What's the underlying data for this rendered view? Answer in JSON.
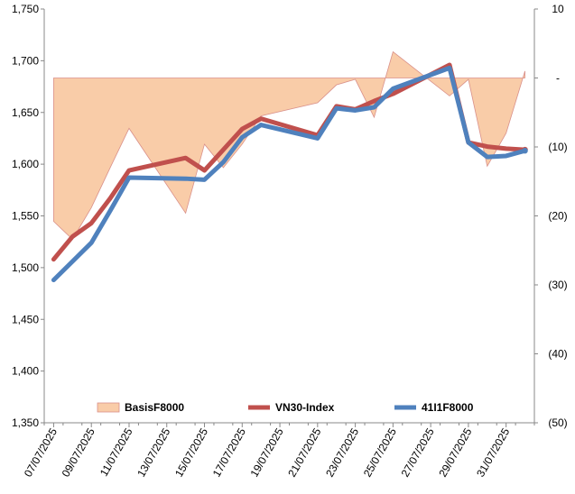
{
  "chart_data": {
    "type": "line",
    "title": "",
    "xlabel": "",
    "ylabel": "",
    "x_tick_labels": [
      "07/07/2025",
      "09/07/2025",
      "11/07/2025",
      "13/07/2025",
      "15/07/2025",
      "17/07/2025",
      "19/07/2025",
      "21/07/2025",
      "23/07/2025",
      "25/07/2025",
      "27/07/2025",
      "29/07/2025",
      "31/07/2025"
    ],
    "x_range": [
      "2025-07-07",
      "2025-08-01"
    ],
    "left_axis": {
      "ylim": [
        1350,
        1750
      ],
      "tick_labels": [
        "1,350",
        "1,400",
        "1,450",
        "1,500",
        "1,550",
        "1,600",
        "1,650",
        "1,700",
        "1,750"
      ]
    },
    "right_axis": {
      "ylim": [
        -50,
        10
      ],
      "tick_labels": [
        "(50)",
        "(40)",
        "(30)",
        "(20)",
        "(10)",
        "-",
        "10"
      ]
    },
    "grid": false,
    "legend_position": "bottom",
    "series": [
      {
        "name": "BasisF8000",
        "type": "area",
        "axis": "right",
        "color": "#f9cca8",
        "edge_color": "#d9908a",
        "x": [
          "2025-07-07",
          "2025-07-08",
          "2025-07-09",
          "2025-07-10",
          "2025-07-11",
          "2025-07-14",
          "2025-07-15",
          "2025-07-16",
          "2025-07-17",
          "2025-07-18",
          "2025-07-21",
          "2025-07-22",
          "2025-07-23",
          "2025-07-24",
          "2025-07-25",
          "2025-07-28",
          "2025-07-29",
          "2025-07-30",
          "2025-07-31",
          "2025-08-01"
        ],
        "values": [
          -20.8,
          -23.4,
          -18.8,
          -13.0,
          -7.3,
          -19.6,
          -9.6,
          -13.0,
          -9.6,
          -5.5,
          -3.6,
          -1.0,
          -0.2,
          -5.7,
          3.8,
          -2.6,
          -0.2,
          -12.8,
          -8.0,
          1.0
        ]
      },
      {
        "name": "VN30-Index",
        "type": "line",
        "axis": "left",
        "color": "#c0504d",
        "x": [
          "2025-07-07",
          "2025-07-08",
          "2025-07-09",
          "2025-07-10",
          "2025-07-11",
          "2025-07-14",
          "2025-07-15",
          "2025-07-16",
          "2025-07-17",
          "2025-07-18",
          "2025-07-21",
          "2025-07-22",
          "2025-07-23",
          "2025-07-24",
          "2025-07-25",
          "2025-07-28",
          "2025-07-29",
          "2025-07-30",
          "2025-07-31",
          "2025-08-01"
        ],
        "values": [
          1508,
          1530,
          1543,
          1567,
          1594,
          1606,
          1594,
          1614,
          1634,
          1644,
          1628,
          1656,
          1653,
          1661,
          1668,
          1696,
          1621,
          1617,
          1615,
          1614
        ]
      },
      {
        "name": "41I1F8000",
        "type": "line",
        "axis": "left",
        "color": "#4f81bd",
        "x": [
          "2025-07-07",
          "2025-07-08",
          "2025-07-09",
          "2025-07-10",
          "2025-07-11",
          "2025-07-14",
          "2025-07-15",
          "2025-07-16",
          "2025-07-17",
          "2025-07-18",
          "2025-07-21",
          "2025-07-22",
          "2025-07-23",
          "2025-07-24",
          "2025-07-25",
          "2025-07-28",
          "2025-07-29",
          "2025-07-30",
          "2025-07-31",
          "2025-08-01"
        ],
        "values": [
          1488,
          1506,
          1524,
          1555,
          1587,
          1586,
          1585,
          1602,
          1626,
          1638,
          1625,
          1654,
          1652,
          1655,
          1673,
          1693,
          1621,
          1607,
          1608,
          1613
        ]
      }
    ]
  }
}
